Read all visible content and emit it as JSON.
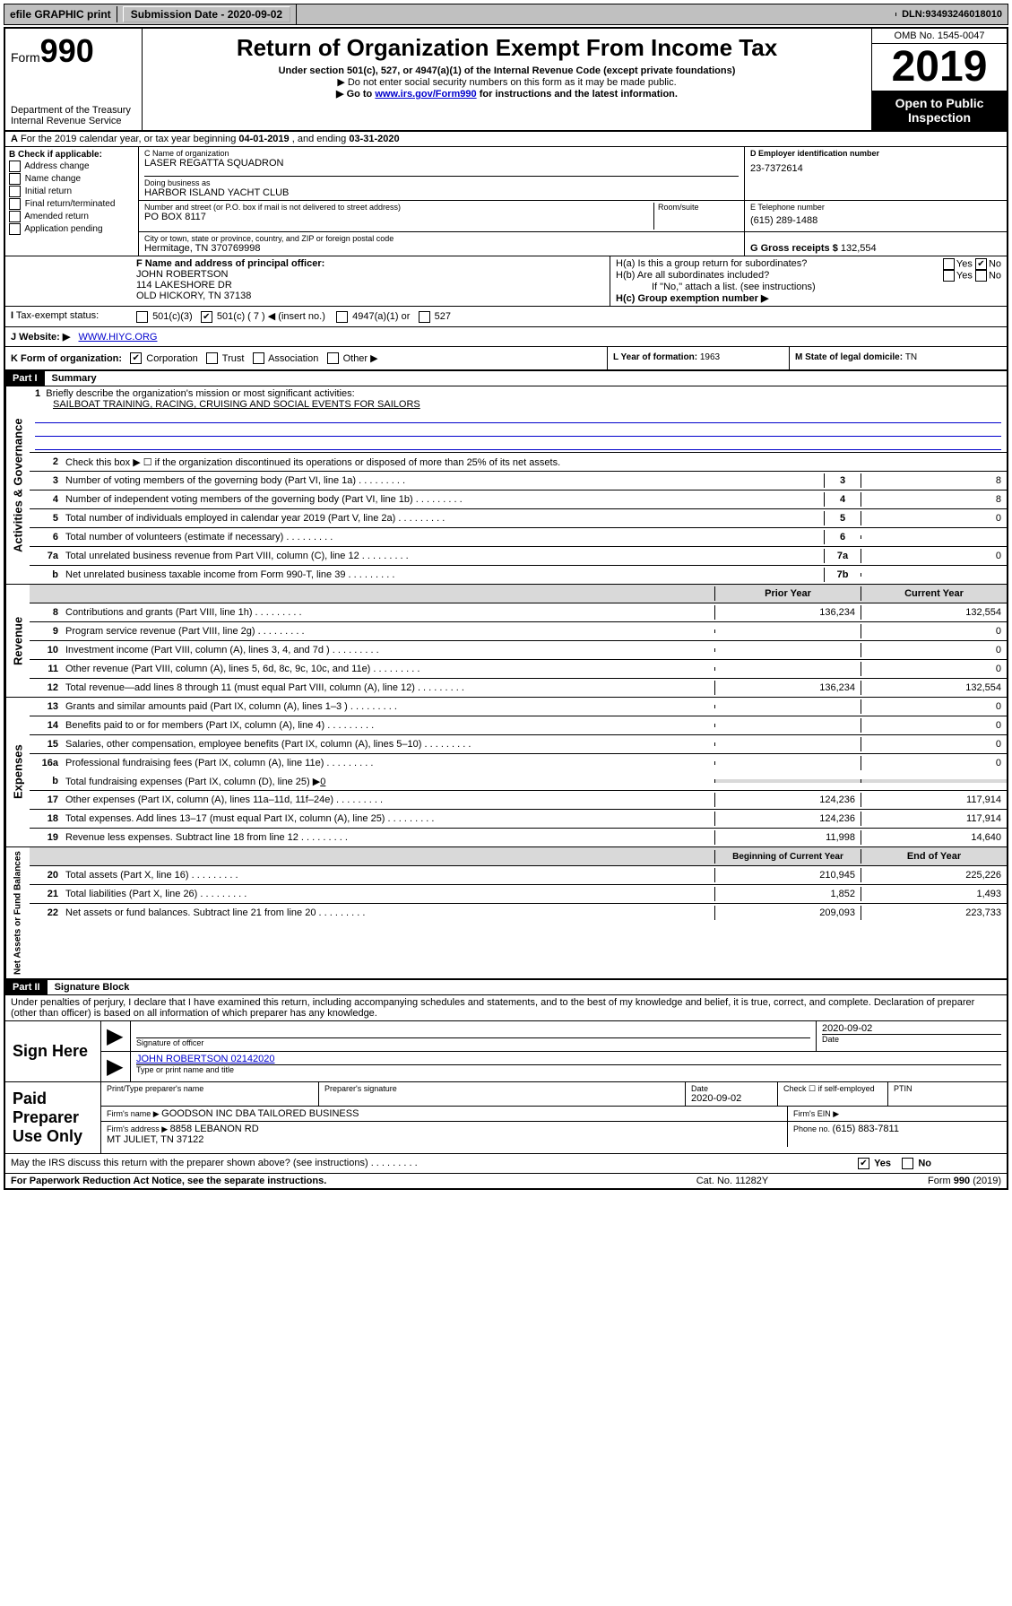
{
  "topbar": {
    "efile": "efile GRAPHIC print",
    "submission_label": "Submission Date - ",
    "submission_date": "2020-09-02",
    "dln_label": "DLN: ",
    "dln": "93493246018010"
  },
  "header": {
    "form_prefix": "Form",
    "form_number": "990",
    "dept": "Department of the Treasury\nInternal Revenue Service",
    "title": "Return of Organization Exempt From Income Tax",
    "subtitle": "Under section 501(c), 527, or 4947(a)(1) of the Internal Revenue Code (except private foundations)",
    "note1": "▶ Do not enter social security numbers on this form as it may be made public.",
    "note2_pre": "▶ Go to ",
    "note2_link": "www.irs.gov/Form990",
    "note2_post": " for instructions and the latest information.",
    "omb": "OMB No. 1545-0047",
    "year": "2019",
    "inspect": "Open to Public Inspection"
  },
  "rowA": {
    "text_pre": "For the 2019 calendar year, or tax year beginning ",
    "begin": "04-01-2019",
    "mid": " , and ending ",
    "end": "03-31-2020"
  },
  "boxB": {
    "header": "B Check if applicable:",
    "items": [
      "Address change",
      "Name change",
      "Initial return",
      "Final return/terminated",
      "Amended return",
      "Application pending"
    ]
  },
  "boxC": {
    "name_label": "C Name of organization",
    "name": "LASER REGATTA SQUADRON",
    "dba_label": "Doing business as",
    "dba": "HARBOR ISLAND YACHT CLUB",
    "addr_label": "Number and street (or P.O. box if mail is not delivered to street address)",
    "room_label": "Room/suite",
    "addr": "PO BOX 8117",
    "city_label": "City or town, state or province, country, and ZIP or foreign postal code",
    "city": "Hermitage, TN  370769998"
  },
  "boxD": {
    "label": "D Employer identification number",
    "value": "23-7372614"
  },
  "boxE": {
    "label": "E Telephone number",
    "value": "(615) 289-1488"
  },
  "boxG": {
    "label": "G Gross receipts $ ",
    "value": "132,554"
  },
  "boxF": {
    "label": "F  Name and address of principal officer:",
    "name": "JOHN ROBERTSON",
    "addr1": "114 LAKESHORE DR",
    "addr2": "OLD HICKORY, TN  37138"
  },
  "boxH": {
    "ha_label": "H(a)  Is this a group return for subordinates?",
    "hb_label": "H(b)  Are all subordinates included?",
    "hb_note": "If \"No,\" attach a list. (see instructions)",
    "hc_label": "H(c)  Group exemption number ▶",
    "yes": "Yes",
    "no": "No"
  },
  "boxI": {
    "label": "Tax-exempt status:",
    "opts": [
      "501(c)(3)",
      "501(c) ( 7 ) ◀ (insert no.)",
      "4947(a)(1) or",
      "527"
    ]
  },
  "boxJ": {
    "label": "J    Website: ▶",
    "value": "WWW.HIYC.ORG"
  },
  "boxK": {
    "label": "K Form of organization:",
    "opts": [
      "Corporation",
      "Trust",
      "Association",
      "Other ▶"
    ]
  },
  "boxL": {
    "label": "L Year of formation: ",
    "value": "1963"
  },
  "boxM": {
    "label": "M State of legal domicile: ",
    "value": "TN"
  },
  "part1": {
    "header": "Part I",
    "title": "Summary",
    "line1_label": "Briefly describe the organization's mission or most significant activities:",
    "line1_val": "SAILBOAT TRAINING, RACING, CRUISING AND SOCIAL EVENTS FOR SAILORS",
    "line2": "Check this box ▶ ☐  if the organization discontinued its operations or disposed of more than 25% of its net assets."
  },
  "sections": {
    "governance": "Activities & Governance",
    "revenue": "Revenue",
    "expenses": "Expenses",
    "netassets": "Net Assets or Fund Balances"
  },
  "gov_rows": [
    {
      "n": "3",
      "d": "Number of voting members of the governing body (Part VI, line 1a)",
      "box": "3",
      "v": "8"
    },
    {
      "n": "4",
      "d": "Number of independent voting members of the governing body (Part VI, line 1b)",
      "box": "4",
      "v": "8"
    },
    {
      "n": "5",
      "d": "Total number of individuals employed in calendar year 2019 (Part V, line 2a)",
      "box": "5",
      "v": "0"
    },
    {
      "n": "6",
      "d": "Total number of volunteers (estimate if necessary)",
      "box": "6",
      "v": ""
    },
    {
      "n": "7a",
      "d": "Total unrelated business revenue from Part VIII, column (C), line 12",
      "box": "7a",
      "v": "0"
    },
    {
      "n": "b",
      "d": "Net unrelated business taxable income from Form 990-T, line 39",
      "box": "7b",
      "v": ""
    }
  ],
  "col_headers": {
    "prior": "Prior Year",
    "current": "Current Year",
    "boy": "Beginning of Current Year",
    "eoy": "End of Year"
  },
  "rev_rows": [
    {
      "n": "8",
      "d": "Contributions and grants (Part VIII, line 1h)",
      "p": "136,234",
      "c": "132,554"
    },
    {
      "n": "9",
      "d": "Program service revenue (Part VIII, line 2g)",
      "p": "",
      "c": "0"
    },
    {
      "n": "10",
      "d": "Investment income (Part VIII, column (A), lines 3, 4, and 7d )",
      "p": "",
      "c": "0"
    },
    {
      "n": "11",
      "d": "Other revenue (Part VIII, column (A), lines 5, 6d, 8c, 9c, 10c, and 11e)",
      "p": "",
      "c": "0"
    },
    {
      "n": "12",
      "d": "Total revenue—add lines 8 through 11 (must equal Part VIII, column (A), line 12)",
      "p": "136,234",
      "c": "132,554"
    }
  ],
  "exp_rows": [
    {
      "n": "13",
      "d": "Grants and similar amounts paid (Part IX, column (A), lines 1–3 )",
      "p": "",
      "c": "0"
    },
    {
      "n": "14",
      "d": "Benefits paid to or for members (Part IX, column (A), line 4)",
      "p": "",
      "c": "0"
    },
    {
      "n": "15",
      "d": "Salaries, other compensation, employee benefits (Part IX, column (A), lines 5–10)",
      "p": "",
      "c": "0"
    },
    {
      "n": "16a",
      "d": "Professional fundraising fees (Part IX, column (A), line 11e)",
      "p": "",
      "c": "0"
    }
  ],
  "exp_b": {
    "n": "b",
    "d": "Total fundraising expenses (Part IX, column (D), line 25) ▶",
    "v": "0"
  },
  "exp_rows2": [
    {
      "n": "17",
      "d": "Other expenses (Part IX, column (A), lines 11a–11d, 11f–24e)",
      "p": "124,236",
      "c": "117,914"
    },
    {
      "n": "18",
      "d": "Total expenses. Add lines 13–17 (must equal Part IX, column (A), line 25)",
      "p": "124,236",
      "c": "117,914"
    },
    {
      "n": "19",
      "d": "Revenue less expenses. Subtract line 18 from line 12",
      "p": "11,998",
      "c": "14,640"
    }
  ],
  "na_rows": [
    {
      "n": "20",
      "d": "Total assets (Part X, line 16)",
      "p": "210,945",
      "c": "225,226"
    },
    {
      "n": "21",
      "d": "Total liabilities (Part X, line 26)",
      "p": "1,852",
      "c": "1,493"
    },
    {
      "n": "22",
      "d": "Net assets or fund balances. Subtract line 21 from line 20",
      "p": "209,093",
      "c": "223,733"
    }
  ],
  "part2": {
    "header": "Part II",
    "title": "Signature Block",
    "declaration": "Under penalties of perjury, I declare that I have examined this return, including accompanying schedules and statements, and to the best of my knowledge and belief, it is true, correct, and complete. Declaration of preparer (other than officer) is based on all information of which preparer has any knowledge."
  },
  "sign": {
    "here": "Sign Here",
    "sig_of_officer": "Signature of officer",
    "date": "2020-09-02",
    "date_label": "Date",
    "name_title": "JOHN ROBERTSON 02142020",
    "name_title_label": "Type or print name and title"
  },
  "paid": {
    "label": "Paid Preparer Use Only",
    "h_print": "Print/Type preparer's name",
    "h_sig": "Preparer's signature",
    "h_date": "Date",
    "date": "2020-09-02",
    "h_check": "Check ☐ if self-employed",
    "h_ptin": "PTIN",
    "firm_name_label": "Firm's name    ▶ ",
    "firm_name": "GOODSON INC DBA TAILORED BUSINESS",
    "firm_ein_label": "Firm's EIN ▶",
    "firm_addr_label": "Firm's address ▶ ",
    "firm_addr": "8858 LEBANON RD\nMT JULIET, TN  37122",
    "phone_label": "Phone no. ",
    "phone": "(615) 883-7811"
  },
  "discuss": {
    "text": "May the IRS discuss this return with the preparer shown above? (see instructions)",
    "yes": "Yes",
    "no": "No"
  },
  "footer": {
    "left": "For Paperwork Reduction Act Notice, see the separate instructions.",
    "center": "Cat. No. 11282Y",
    "right": "Form 990 (2019)"
  }
}
